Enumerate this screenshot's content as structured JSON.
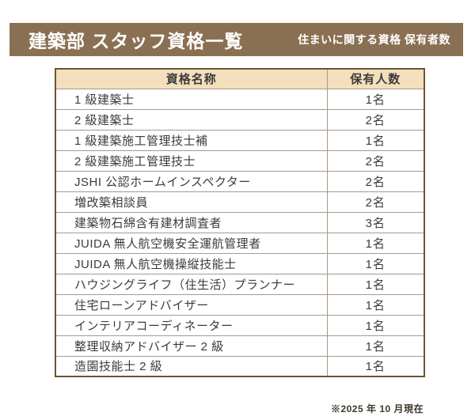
{
  "header": {
    "title": "建築部 スタッフ資格一覧",
    "subtitle": "住まいに関する資格 保有者数"
  },
  "table": {
    "columns": {
      "name": "資格名称",
      "count": "保有人数"
    },
    "rows": [
      {
        "name": "1 級建築士",
        "count": "1名"
      },
      {
        "name": "2 級建築士",
        "count": "2名"
      },
      {
        "name": "1 級建築施工管理技士補",
        "count": "1名"
      },
      {
        "name": "2 級建築施工管理技士",
        "count": "2名"
      },
      {
        "name": "JSHI 公認ホームインスペクター",
        "count": "2名"
      },
      {
        "name": "増改築相談員",
        "count": "2名"
      },
      {
        "name": "建築物石綿含有建材調査者",
        "count": "3名"
      },
      {
        "name": "JUIDA 無人航空機安全運航管理者",
        "count": "1名"
      },
      {
        "name": "JUIDA 無人航空機操縦技能士",
        "count": "1名"
      },
      {
        "name": "ハウジングライフ（住生活）プランナー",
        "count": "1名"
      },
      {
        "name": "住宅ローンアドバイザー",
        "count": "1名"
      },
      {
        "name": "インテリアコーディネーター",
        "count": "1名"
      },
      {
        "name": "整理収納アドバイザー 2 級",
        "count": "1名"
      },
      {
        "name": "造園技能士 2 級",
        "count": "1名"
      }
    ]
  },
  "footer": {
    "note": "※2025 年 10 月現在"
  },
  "colors": {
    "title_bar": "#8a7053",
    "table_header_bg": "#f3dfbc",
    "table_outer_border": "#6d5335",
    "table_grid": "#a89a84",
    "text": "#3b3b3b",
    "footer_text": "#3f382c",
    "page_background": "#ffffff"
  }
}
